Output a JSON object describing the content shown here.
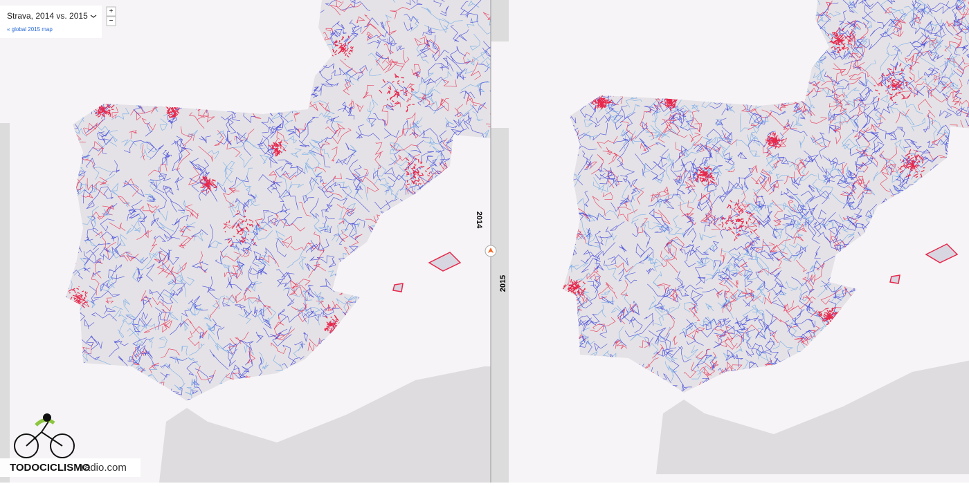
{
  "header": {
    "title": "Strava, 2014 vs. 2015",
    "link": "« global 2015 map"
  },
  "zoom": {
    "in": "+",
    "out": "−"
  },
  "panels": {
    "left": "2014",
    "right": "2015"
  },
  "logo": {
    "brand": "TODOCICLISMO",
    "suffix": "radio.com"
  }
}
